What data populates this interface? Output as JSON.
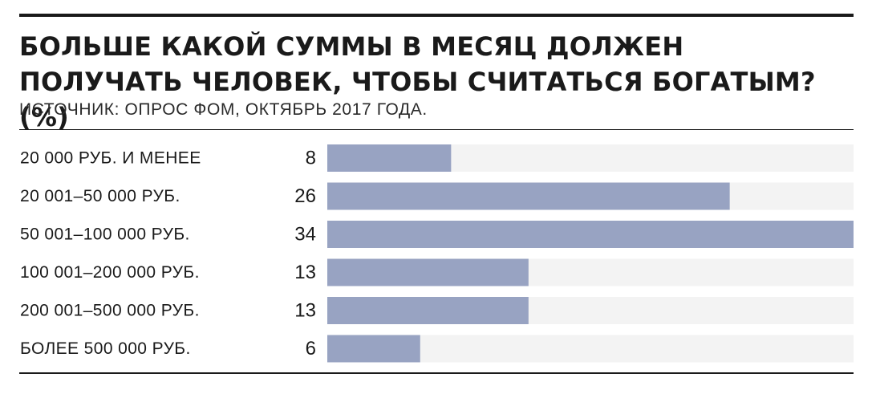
{
  "header": {
    "title": "БОЛЬШЕ КАКОЙ СУММЫ В МЕСЯЦ ДОЛЖЕН ПОЛУЧАТЬ ЧЕЛОВЕК, ЧТОБЫ СЧИТАТЬСЯ БОГАТЫМ? (%)",
    "source": "ИСТОЧНИК: ОПРОС ФОМ, ОКТЯБРЬ 2017 ГОДА."
  },
  "colors": {
    "bar": "#98a3c2",
    "track": "#f3f3f3",
    "text": "#1a1a1a"
  },
  "chart_data": {
    "type": "bar",
    "orientation": "horizontal",
    "title": "БОЛЬШЕ КАКОЙ СУММЫ В МЕСЯЦ ДОЛЖЕН ПОЛУЧАТЬ ЧЕЛОВЕК, ЧТОБЫ СЧИТАТЬСЯ БОГАТЫМ? (%)",
    "categories": [
      "20 000 РУБ. И МЕНЕЕ",
      "20 001–50 000 РУБ.",
      "50 001–100 000 РУБ.",
      "100 001–200 000 РУБ.",
      "200 001–500 000 РУБ.",
      "БОЛЕЕ 500 000 РУБ."
    ],
    "values": [
      8,
      26,
      34,
      13,
      13,
      6
    ],
    "value_labels": [
      "8",
      "26",
      "34",
      "13",
      "13",
      "6"
    ],
    "xlim": [
      0,
      34
    ],
    "grid": false,
    "legend": "none"
  }
}
